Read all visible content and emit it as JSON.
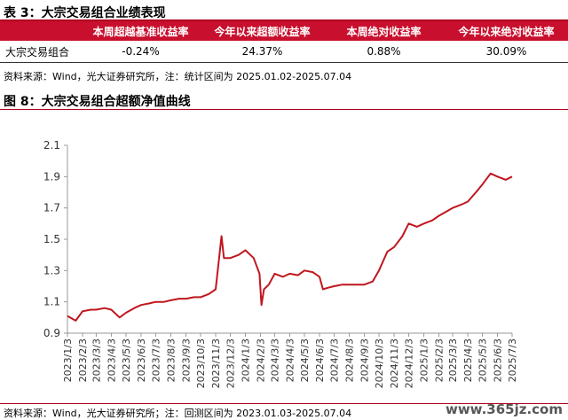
{
  "table_section": {
    "title": "表 3：大宗交易组合业绩表现",
    "headers": [
      "",
      "本周超越基准收益率",
      "今年以来超额收益率",
      "本周绝对收益率",
      "今年以来绝对收益率"
    ],
    "rows": [
      [
        "大宗交易组合",
        "-0.24%",
        "24.37%",
        "0.88%",
        "30.09%"
      ]
    ],
    "source": "资料来源：Wind，光大证券研究所，注：统计区间为 2025.01.02-2025.07.04"
  },
  "chart_section": {
    "title": "图 8：大宗交易组合超额净值曲线",
    "source": "资料来源：Wind，光大证券研究所；注：回测区间为 2023.01.03-2025.07.04"
  },
  "watermark": "www.365jz.com",
  "colors": {
    "accent": "#c8102e",
    "line": "#c0161e"
  },
  "chart_data": {
    "type": "line",
    "title": "",
    "xlabel": "",
    "ylabel": "",
    "ylim": [
      0.9,
      2.1
    ],
    "yticks": [
      "0.9",
      "1.1",
      "1.3",
      "1.5",
      "1.7",
      "1.9",
      "2.1"
    ],
    "xticks": [
      "2023/1/3",
      "2023/2/3",
      "2023/3/3",
      "2023/4/3",
      "2023/5/3",
      "2023/6/3",
      "2023/7/3",
      "2023/8/3",
      "2023/9/3",
      "2023/10/3",
      "2023/11/3",
      "2023/12/3",
      "2024/1/3",
      "2024/2/3",
      "2024/3/3",
      "2024/4/3",
      "2024/5/3",
      "2024/6/3",
      "2024/7/3",
      "2024/8/3",
      "2024/9/3",
      "2024/10/3",
      "2024/11/3",
      "2024/12/3",
      "2025/1/3",
      "2025/2/3",
      "2025/3/3",
      "2025/4/3",
      "2025/5/3",
      "2025/6/3",
      "2025/7/3"
    ],
    "grid": false,
    "legend": "none",
    "series": [
      {
        "x": [
          "2023/1/3",
          "2023/1/20",
          "2023/2/3",
          "2023/2/20",
          "2023/3/3",
          "2023/3/20",
          "2023/4/3",
          "2023/4/20",
          "2023/5/3",
          "2023/5/20",
          "2023/6/3",
          "2023/6/20",
          "2023/7/3",
          "2023/7/20",
          "2023/8/3",
          "2023/8/20",
          "2023/9/3",
          "2023/9/20",
          "2023/10/3",
          "2023/10/20",
          "2023/11/3",
          "2023/11/15",
          "2023/11/20",
          "2023/12/3",
          "2023/12/20",
          "2024/1/3",
          "2024/1/20",
          "2024/2/1",
          "2024/2/5",
          "2024/2/10",
          "2024/2/20",
          "2024/3/3",
          "2024/3/20",
          "2024/4/3",
          "2024/4/20",
          "2024/5/3",
          "2024/5/20",
          "2024/6/3",
          "2024/6/10",
          "2024/6/20",
          "2024/7/3",
          "2024/7/20",
          "2024/8/3",
          "2024/8/20",
          "2024/9/3",
          "2024/9/20",
          "2024/10/3",
          "2024/10/20",
          "2024/11/3",
          "2024/11/20",
          "2024/12/3",
          "2024/12/20",
          "2025/1/3",
          "2025/1/20",
          "2025/2/3",
          "2025/2/20",
          "2025/3/3",
          "2025/3/20",
          "2025/4/3",
          "2025/4/20",
          "2025/5/3",
          "2025/5/20",
          "2025/6/3",
          "2025/6/20",
          "2025/7/3"
        ],
        "y": [
          1.01,
          0.98,
          1.04,
          1.05,
          1.05,
          1.06,
          1.05,
          1.0,
          1.03,
          1.06,
          1.08,
          1.09,
          1.1,
          1.1,
          1.11,
          1.12,
          1.12,
          1.13,
          1.13,
          1.15,
          1.18,
          1.52,
          1.38,
          1.38,
          1.4,
          1.43,
          1.38,
          1.28,
          1.08,
          1.18,
          1.21,
          1.28,
          1.26,
          1.28,
          1.27,
          1.3,
          1.29,
          1.26,
          1.18,
          1.19,
          1.2,
          1.21,
          1.21,
          1.21,
          1.21,
          1.23,
          1.3,
          1.42,
          1.45,
          1.52,
          1.6,
          1.58,
          1.6,
          1.62,
          1.65,
          1.68,
          1.7,
          1.72,
          1.74,
          1.8,
          1.85,
          1.92,
          1.9,
          1.88,
          1.9
        ]
      }
    ]
  }
}
